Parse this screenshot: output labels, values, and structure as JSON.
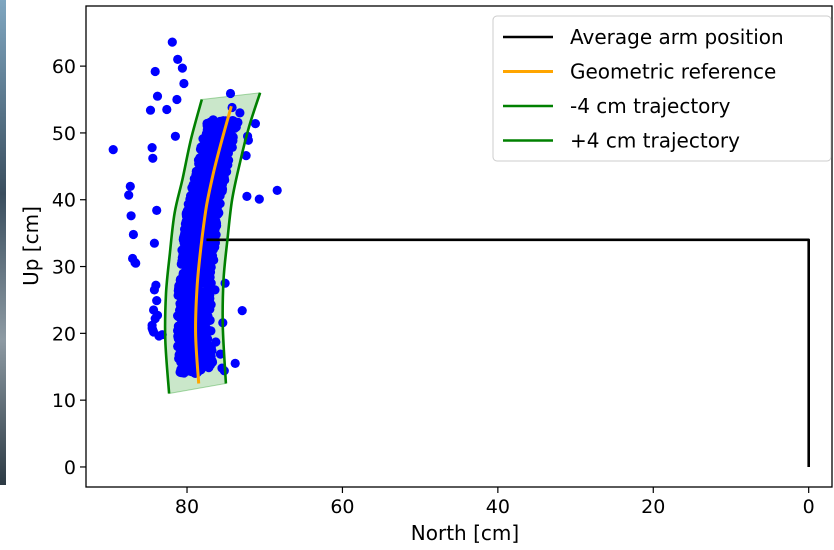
{
  "chart_data": {
    "type": "scatter",
    "title": "",
    "xlabel": "North [cm]",
    "ylabel": "Up [cm]",
    "xlim": [
      93,
      -3
    ],
    "ylim": [
      -3,
      69
    ],
    "x_ticks": [
      80,
      60,
      40,
      20,
      0
    ],
    "y_ticks": [
      0,
      10,
      20,
      30,
      40,
      50,
      60
    ],
    "grid": false,
    "legend_placement": "top-right",
    "series": [
      {
        "name": "Average arm position",
        "kind": "line",
        "color": "#000000",
        "x": [
          77.5,
          0,
          0
        ],
        "y": [
          34,
          34,
          0
        ]
      },
      {
        "name": "Geometric reference",
        "kind": "line",
        "color": "#ffa500",
        "x": [
          78.5,
          78.9,
          78.7,
          78.2,
          77.5,
          76.6,
          75.5,
          74.3
        ],
        "y": [
          12.5,
          20,
          27,
          33,
          39,
          44,
          49,
          54
        ]
      },
      {
        "name": "-4 cm trajectory",
        "kind": "line",
        "color": "#008000",
        "x": [
          82.3,
          82.8,
          82.7,
          82.2,
          81.6,
          80.6,
          79.5,
          78.1
        ],
        "y": [
          11,
          19,
          26,
          32,
          38,
          43,
          49,
          55
        ]
      },
      {
        "name": "+4 cm trajectory",
        "kind": "line",
        "color": "#008000",
        "x": [
          75.0,
          75.4,
          75.3,
          74.8,
          74.2,
          73.2,
          72.0,
          70.6
        ],
        "y": [
          12.5,
          21,
          28,
          34,
          40,
          45.5,
          51,
          56
        ]
      },
      {
        "name": "",
        "kind": "scatter",
        "color": "#0000ff",
        "x": [
          89.5,
          87.5,
          87.3,
          87.2,
          86.9,
          87.0,
          86.6,
          86.7,
          84.2,
          84.4,
          84.5,
          84.7,
          83.8,
          84.1,
          81.2,
          80.6,
          80.4,
          81.9,
          82.6,
          81.3,
          81.5,
          83.9,
          83.8,
          84.3,
          84.1,
          84.5,
          84.4,
          84.2,
          84.0,
          83.9,
          84.5,
          84.3,
          83.6,
          83.2,
          77.2,
          77.6,
          76.8,
          76.3,
          75.7,
          75.5,
          75.2,
          75.4,
          76.4,
          75.1,
          72.9,
          73.8,
          72.4,
          72.3,
          74.4,
          74.2,
          71.2,
          72.1,
          72.2,
          73.2,
          70.7,
          68.4
        ],
        "y": [
          47.5,
          40.7,
          42.0,
          37.6,
          34.8,
          31.2,
          30.5,
          30.6,
          33.5,
          46.2,
          47.8,
          53.4,
          55.5,
          59.2,
          61.0,
          59.7,
          57.4,
          63.6,
          53.5,
          55.0,
          49.5,
          24.9,
          22.7,
          23.5,
          22.2,
          21.2,
          20.5,
          26.5,
          27.2,
          38.4,
          20.8,
          20.2,
          19.6,
          19.8,
          16.5,
          15.1,
          17.4,
          18.7,
          16.9,
          14.8,
          14.4,
          21.6,
          26.5,
          27.5,
          23.4,
          15.5,
          46.6,
          40.5,
          55.9,
          53.8,
          51.4,
          48.9,
          49.5,
          53.0,
          40.1,
          41.4
        ]
      }
    ],
    "fill_band": {
      "name": "",
      "color": "#2ca02c",
      "x": [
        82.3,
        82.8,
        82.7,
        82.2,
        81.6,
        80.6,
        79.5,
        78.1,
        70.6,
        72.0,
        73.2,
        74.2,
        74.8,
        75.3,
        75.4,
        75.0
      ],
      "y": [
        11,
        19,
        26,
        32,
        38,
        43,
        49,
        55,
        56,
        51,
        45.5,
        40,
        34,
        28,
        21,
        12.5
      ]
    }
  }
}
